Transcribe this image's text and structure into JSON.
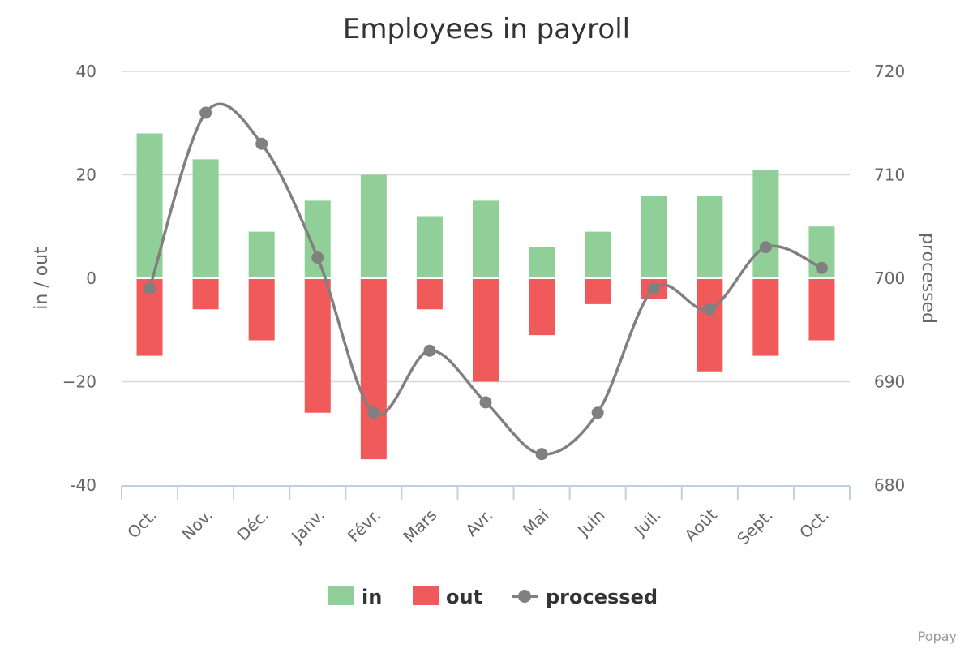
{
  "chart_data": {
    "type": "bar",
    "title": "Employees in payroll",
    "categories": [
      "Oct.",
      "Nov.",
      "Déc.",
      "Janv.",
      "Févr.",
      "Mars",
      "Avr.",
      "Mai",
      "Juin",
      "Juil.",
      "Août",
      "Sept.",
      "Oct."
    ],
    "y_left": {
      "title": "in / out",
      "range": [
        -40,
        40
      ],
      "ticks": [
        "40",
        "20",
        "0",
        "−20",
        "-40"
      ]
    },
    "y_right": {
      "title": "processed",
      "range": [
        680,
        720
      ],
      "ticks": [
        "720",
        "710",
        "700",
        "690",
        "680"
      ]
    },
    "grid": true,
    "legend_position": "bottom",
    "series": [
      {
        "name": "in",
        "type": "column",
        "axis": "left",
        "color": "#90cf98",
        "values": [
          28,
          23,
          9,
          15,
          20,
          12,
          15,
          6,
          9,
          16,
          16,
          21,
          10
        ]
      },
      {
        "name": "out",
        "type": "column",
        "axis": "left",
        "color": "#f05a5a",
        "values": [
          -15,
          -6,
          -12,
          -26,
          -35,
          -6,
          -20,
          -11,
          -5,
          -4,
          -18,
          -15,
          -12
        ]
      },
      {
        "name": "processed",
        "type": "spline",
        "axis": "right",
        "color": "#808080",
        "values": [
          699,
          716,
          713,
          702,
          687,
          693,
          688,
          683,
          687,
          699,
          697,
          703,
          701
        ]
      }
    ]
  },
  "credits": "Popay"
}
